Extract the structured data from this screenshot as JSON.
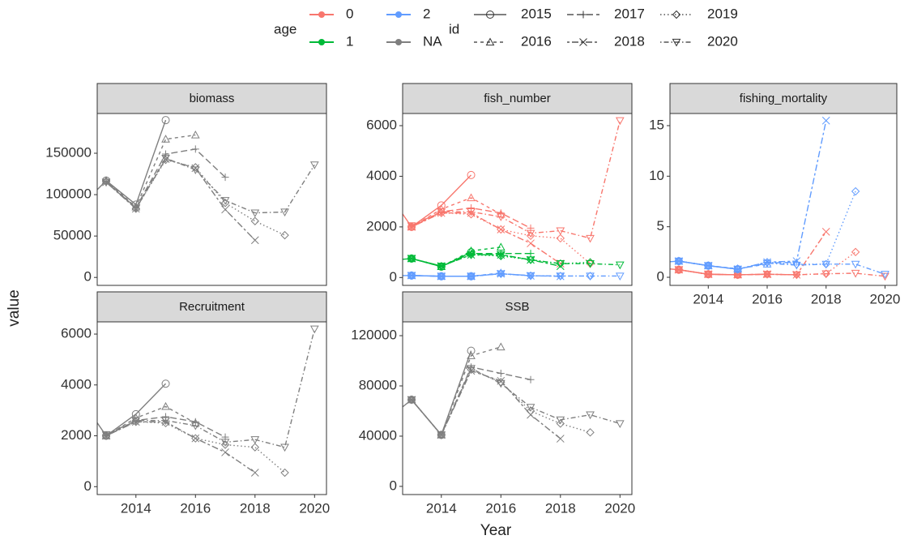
{
  "x_label": "Year",
  "y_label": "value",
  "legend": {
    "age": {
      "title": "age",
      "items": [
        {
          "label": "0",
          "color": "#F8766D"
        },
        {
          "label": "1",
          "color": "#00BA38"
        },
        {
          "label": "2",
          "color": "#619CFF"
        },
        {
          "label": "NA",
          "color": "#7F7F7F"
        }
      ]
    },
    "id": {
      "title": "id",
      "items": [
        {
          "label": "2015",
          "linetype": "solid",
          "shape": "circle"
        },
        {
          "label": "2016",
          "linetype": "dashed",
          "shape": "triangle"
        },
        {
          "label": "2017",
          "linetype": "longdash",
          "shape": "plus"
        },
        {
          "label": "2018",
          "linetype": "twodash",
          "shape": "cross"
        },
        {
          "label": "2019",
          "linetype": "dotted",
          "shape": "diamond"
        },
        {
          "label": "2020",
          "linetype": "dotdash",
          "shape": "down-triangle"
        }
      ]
    }
  },
  "chart_data": [
    {
      "type": "line",
      "title": "biomass",
      "xlim": [
        2012.7,
        2020.4
      ],
      "ylim": [
        -9600,
        198000
      ],
      "yticks": [
        0,
        50000,
        100000,
        150000
      ],
      "series": [
        {
          "name": "2015",
          "color": "#7F7F7F",
          "x": [
            2012,
            2013,
            2014,
            2015
          ],
          "values": [
            80000,
            117000,
            88000,
            190000
          ]
        },
        {
          "name": "2016",
          "color": "#7F7F7F",
          "x": [
            2013,
            2014,
            2015,
            2016
          ],
          "values": [
            117000,
            85000,
            167000,
            172000
          ]
        },
        {
          "name": "2017",
          "color": "#7F7F7F",
          "x": [
            2013,
            2014,
            2015,
            2016,
            2017
          ],
          "values": [
            116000,
            84000,
            149000,
            155000,
            121000
          ]
        },
        {
          "name": "2018",
          "color": "#7F7F7F",
          "x": [
            2013,
            2014,
            2015,
            2016,
            2017,
            2018
          ],
          "values": [
            115000,
            83000,
            143000,
            132000,
            82000,
            45000
          ]
        },
        {
          "name": "2019",
          "color": "#7F7F7F",
          "x": [
            2013,
            2014,
            2015,
            2016,
            2017,
            2018,
            2019
          ],
          "values": [
            116000,
            83000,
            142000,
            133000,
            90000,
            68000,
            51000
          ]
        },
        {
          "name": "2020",
          "color": "#7F7F7F",
          "x": [
            2013,
            2014,
            2015,
            2016,
            2017,
            2018,
            2019,
            2020
          ],
          "values": [
            115000,
            84000,
            144000,
            130000,
            93000,
            78000,
            79000,
            136000
          ]
        }
      ]
    },
    {
      "type": "line",
      "title": "fish_number",
      "xlim": [
        2012.7,
        2020.4
      ],
      "ylim": [
        -310,
        6480
      ],
      "yticks": [
        0,
        2000,
        4000,
        6000
      ],
      "series": [
        {
          "name": "2015",
          "color": "#F8766D",
          "x": [
            2012,
            2013,
            2014,
            2015
          ],
          "values": [
            3700,
            2000,
            2850,
            4050
          ]
        },
        {
          "name": "2016",
          "color": "#F8766D",
          "x": [
            2013,
            2014,
            2015,
            2016
          ],
          "values": [
            2000,
            2700,
            3150,
            2500
          ]
        },
        {
          "name": "2017",
          "color": "#F8766D",
          "x": [
            2013,
            2014,
            2015,
            2016,
            2017
          ],
          "values": [
            2000,
            2600,
            2750,
            2550,
            1950
          ]
        },
        {
          "name": "2018",
          "color": "#F8766D",
          "x": [
            2013,
            2014,
            2015,
            2016,
            2017,
            2018
          ],
          "values": [
            2000,
            2550,
            2550,
            1900,
            1350,
            550
          ]
        },
        {
          "name": "2019",
          "color": "#F8766D",
          "x": [
            2013,
            2014,
            2015,
            2016,
            2017,
            2018,
            2019
          ],
          "values": [
            2000,
            2550,
            2500,
            1900,
            1650,
            1550,
            550
          ]
        },
        {
          "name": "2020",
          "color": "#F8766D",
          "x": [
            2013,
            2014,
            2015,
            2016,
            2017,
            2018,
            2019,
            2020
          ],
          "values": [
            2050,
            2600,
            2600,
            2400,
            1750,
            1850,
            1550,
            6200
          ]
        },
        {
          "name": "2015",
          "color": "#00BA38",
          "x": [
            2012,
            2013,
            2014,
            2015
          ],
          "values": [
            650,
            750,
            430,
            1000
          ]
        },
        {
          "name": "2016",
          "color": "#00BA38",
          "x": [
            2013,
            2014,
            2015,
            2016
          ],
          "values": [
            750,
            430,
            1050,
            1200
          ]
        },
        {
          "name": "2017",
          "color": "#00BA38",
          "x": [
            2013,
            2014,
            2015,
            2016,
            2017
          ],
          "values": [
            750,
            450,
            950,
            950,
            950
          ]
        },
        {
          "name": "2018",
          "color": "#00BA38",
          "x": [
            2013,
            2014,
            2015,
            2016,
            2017,
            2018
          ],
          "values": [
            750,
            450,
            900,
            900,
            700,
            450
          ]
        },
        {
          "name": "2019",
          "color": "#00BA38",
          "x": [
            2013,
            2014,
            2015,
            2016,
            2017,
            2018,
            2019
          ],
          "values": [
            750,
            450,
            900,
            850,
            700,
            550,
            600
          ]
        },
        {
          "name": "2020",
          "color": "#00BA38",
          "x": [
            2013,
            2014,
            2015,
            2016,
            2017,
            2018,
            2019,
            2020
          ],
          "values": [
            750,
            450,
            900,
            900,
            700,
            550,
            550,
            500
          ]
        },
        {
          "name": "2015",
          "color": "#619CFF",
          "x": [
            2012,
            2013,
            2014,
            2015
          ],
          "values": [
            70,
            80,
            50,
            50
          ]
        },
        {
          "name": "2016",
          "color": "#619CFF",
          "x": [
            2013,
            2014,
            2015,
            2016
          ],
          "values": [
            80,
            50,
            50,
            180
          ]
        },
        {
          "name": "2017",
          "color": "#619CFF",
          "x": [
            2013,
            2014,
            2015,
            2016,
            2017
          ],
          "values": [
            80,
            50,
            50,
            150,
            80
          ]
        },
        {
          "name": "2018",
          "color": "#619CFF",
          "x": [
            2013,
            2014,
            2015,
            2016,
            2017,
            2018
          ],
          "values": [
            80,
            50,
            50,
            150,
            70,
            50
          ]
        },
        {
          "name": "2019",
          "color": "#619CFF",
          "x": [
            2013,
            2014,
            2015,
            2016,
            2017,
            2018,
            2019
          ],
          "values": [
            80,
            50,
            50,
            150,
            70,
            60,
            60
          ]
        },
        {
          "name": "2020",
          "color": "#619CFF",
          "x": [
            2013,
            2014,
            2015,
            2016,
            2017,
            2018,
            2019,
            2020
          ],
          "values": [
            80,
            50,
            50,
            150,
            70,
            60,
            60,
            60
          ]
        }
      ]
    },
    {
      "type": "line",
      "title": "fishing_mortality",
      "xlim": [
        2012.7,
        2020.4
      ],
      "ylim": [
        -0.8,
        16.2
      ],
      "yticks": [
        0,
        5,
        10,
        15
      ],
      "xticks": [
        2014,
        2016,
        2018,
        2020
      ],
      "series": [
        {
          "name": "2015",
          "color": "#F8766D",
          "x": [
            2012,
            2013,
            2014,
            2015
          ],
          "values": [
            1.0,
            0.75,
            0.3,
            0.25
          ]
        },
        {
          "name": "2016",
          "color": "#F8766D",
          "x": [
            2013,
            2014,
            2015,
            2016
          ],
          "values": [
            0.75,
            0.3,
            0.25,
            0.3
          ]
        },
        {
          "name": "2017",
          "color": "#F8766D",
          "x": [
            2013,
            2014,
            2015,
            2016,
            2017
          ],
          "values": [
            0.75,
            0.3,
            0.25,
            0.3,
            0.25
          ]
        },
        {
          "name": "2018",
          "color": "#F8766D",
          "x": [
            2013,
            2014,
            2015,
            2016,
            2017,
            2018
          ],
          "values": [
            0.75,
            0.3,
            0.25,
            0.3,
            0.25,
            4.5
          ]
        },
        {
          "name": "2019",
          "color": "#F8766D",
          "x": [
            2013,
            2014,
            2015,
            2016,
            2017,
            2018,
            2019
          ],
          "values": [
            0.75,
            0.3,
            0.25,
            0.3,
            0.25,
            0.35,
            2.5
          ]
        },
        {
          "name": "2020",
          "color": "#F8766D",
          "x": [
            2013,
            2014,
            2015,
            2016,
            2017,
            2018,
            2019,
            2020
          ],
          "values": [
            0.75,
            0.3,
            0.25,
            0.3,
            0.25,
            0.35,
            0.4,
            0.1
          ]
        },
        {
          "name": "2015",
          "color": "#619CFF",
          "x": [
            2012,
            2013,
            2014,
            2015
          ],
          "values": [
            1.4,
            1.6,
            1.15,
            0.8
          ]
        },
        {
          "name": "2016",
          "color": "#619CFF",
          "x": [
            2013,
            2014,
            2015,
            2016
          ],
          "values": [
            1.6,
            1.15,
            0.85,
            1.3
          ]
        },
        {
          "name": "2017",
          "color": "#619CFF",
          "x": [
            2013,
            2014,
            2015,
            2016,
            2017
          ],
          "values": [
            1.6,
            1.15,
            0.8,
            1.4,
            1.5
          ]
        },
        {
          "name": "2018",
          "color": "#619CFF",
          "x": [
            2013,
            2014,
            2015,
            2016,
            2017,
            2018
          ],
          "values": [
            1.6,
            1.15,
            0.8,
            1.5,
            1.6,
            15.5
          ]
        },
        {
          "name": "2019",
          "color": "#619CFF",
          "x": [
            2013,
            2014,
            2015,
            2016,
            2017,
            2018,
            2019
          ],
          "values": [
            1.6,
            1.15,
            0.8,
            1.5,
            1.3,
            1.3,
            8.5
          ]
        },
        {
          "name": "2020",
          "color": "#619CFF",
          "x": [
            2013,
            2014,
            2015,
            2016,
            2017,
            2018,
            2019,
            2020
          ],
          "values": [
            1.6,
            1.15,
            0.8,
            1.4,
            1.2,
            1.3,
            1.3,
            0.3
          ]
        }
      ]
    },
    {
      "type": "line",
      "title": "Recruitment",
      "xlim": [
        2012.7,
        2020.4
      ],
      "ylim": [
        -310,
        6480
      ],
      "yticks": [
        0,
        2000,
        4000,
        6000
      ],
      "xticks": [
        2014,
        2016,
        2018,
        2020
      ],
      "series": [
        {
          "name": "2015",
          "color": "#7F7F7F",
          "x": [
            2012,
            2013,
            2014,
            2015
          ],
          "values": [
            3700,
            2000,
            2850,
            4050
          ]
        },
        {
          "name": "2016",
          "color": "#7F7F7F",
          "x": [
            2013,
            2014,
            2015,
            2016
          ],
          "values": [
            2000,
            2700,
            3150,
            2500
          ]
        },
        {
          "name": "2017",
          "color": "#7F7F7F",
          "x": [
            2013,
            2014,
            2015,
            2016,
            2017
          ],
          "values": [
            2000,
            2600,
            2750,
            2550,
            1950
          ]
        },
        {
          "name": "2018",
          "color": "#7F7F7F",
          "x": [
            2013,
            2014,
            2015,
            2016,
            2017,
            2018
          ],
          "values": [
            2000,
            2550,
            2550,
            1900,
            1350,
            550
          ]
        },
        {
          "name": "2019",
          "color": "#7F7F7F",
          "x": [
            2013,
            2014,
            2015,
            2016,
            2017,
            2018,
            2019
          ],
          "values": [
            2000,
            2550,
            2500,
            1900,
            1650,
            1550,
            550
          ]
        },
        {
          "name": "2020",
          "color": "#7F7F7F",
          "x": [
            2013,
            2014,
            2015,
            2016,
            2017,
            2018,
            2019,
            2020
          ],
          "values": [
            2050,
            2600,
            2600,
            2400,
            1750,
            1850,
            1550,
            6200
          ]
        }
      ]
    },
    {
      "type": "line",
      "title": "SSB",
      "xlim": [
        2012.7,
        2020.4
      ],
      "ylim": [
        -6500,
        131000
      ],
      "yticks": [
        0,
        40000,
        80000,
        120000
      ],
      "xticks": [
        2014,
        2016,
        2018,
        2020
      ],
      "series": [
        {
          "name": "2015",
          "color": "#7F7F7F",
          "x": [
            2012,
            2013,
            2014,
            2015
          ],
          "values": [
            50000,
            69000,
            41000,
            108000
          ]
        },
        {
          "name": "2016",
          "color": "#7F7F7F",
          "x": [
            2013,
            2014,
            2015,
            2016
          ],
          "values": [
            69000,
            41000,
            104000,
            111000
          ]
        },
        {
          "name": "2017",
          "color": "#7F7F7F",
          "x": [
            2013,
            2014,
            2015,
            2016,
            2017
          ],
          "values": [
            69000,
            41000,
            95000,
            90000,
            85000
          ]
        },
        {
          "name": "2018",
          "color": "#7F7F7F",
          "x": [
            2013,
            2014,
            2015,
            2016,
            2017,
            2018
          ],
          "values": [
            69000,
            41000,
            92000,
            84000,
            57000,
            38000
          ]
        },
        {
          "name": "2019",
          "color": "#7F7F7F",
          "x": [
            2013,
            2014,
            2015,
            2016,
            2017,
            2018,
            2019
          ],
          "values": [
            69000,
            41000,
            93000,
            83000,
            60000,
            50000,
            43000
          ]
        },
        {
          "name": "2020",
          "color": "#7F7F7F",
          "x": [
            2013,
            2014,
            2015,
            2016,
            2017,
            2018,
            2019,
            2020
          ],
          "values": [
            69000,
            41000,
            94000,
            82000,
            63000,
            53000,
            57000,
            50000
          ]
        }
      ]
    }
  ]
}
